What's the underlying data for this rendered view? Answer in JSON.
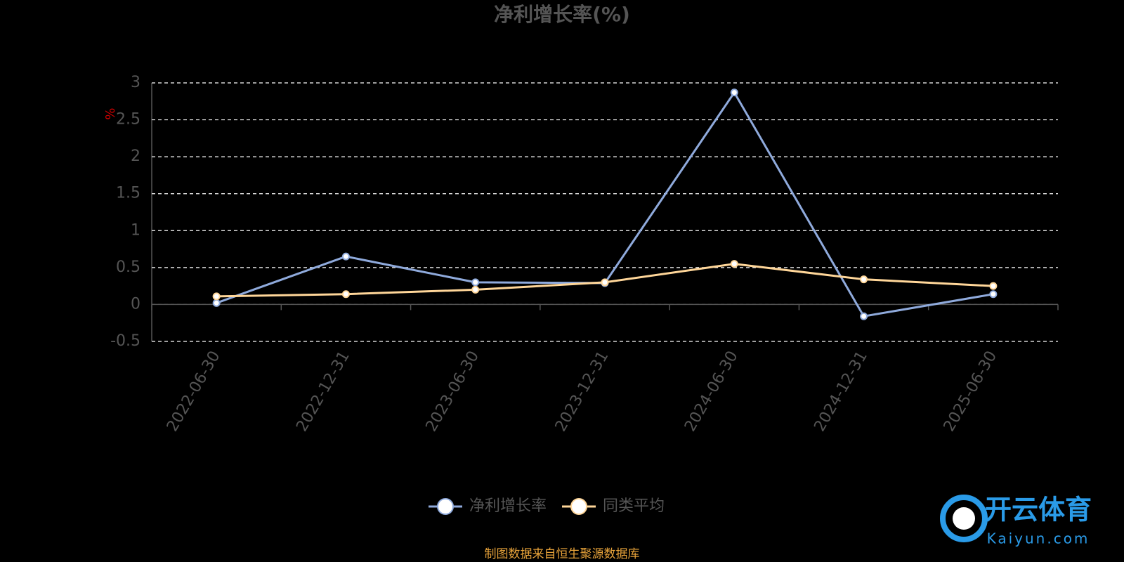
{
  "chart_data": {
    "type": "line",
    "title": "净利增长率(%)",
    "y_label": "%",
    "categories": [
      "2022-06-30",
      "2022-12-31",
      "2023-06-30",
      "2023-12-31",
      "2024-06-30",
      "2024-12-31",
      "2025-06-30"
    ],
    "series": [
      {
        "name": "净利增长率",
        "color": "#8faadc",
        "values": [
          0.02,
          0.65,
          0.3,
          0.29,
          2.87,
          -0.16,
          0.14
        ]
      },
      {
        "name": "同类平均",
        "color": "#ffd699",
        "values": [
          0.11,
          0.14,
          0.2,
          0.3,
          0.55,
          0.34,
          0.25
        ]
      }
    ],
    "ylim": [
      -0.5,
      3
    ],
    "yticks": [
      -0.5,
      0,
      0.5,
      1,
      1.5,
      2,
      2.5,
      3
    ],
    "grid": true,
    "legend": "bottom",
    "source": "制图数据来自恒生聚源数据库"
  },
  "watermark": {
    "brand": "开云体育",
    "url": "Kaiyun.com"
  }
}
